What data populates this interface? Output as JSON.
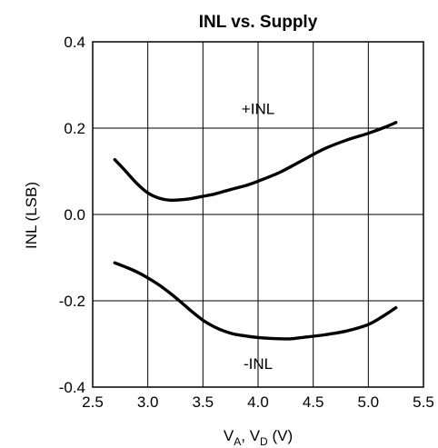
{
  "chart_data": {
    "type": "line",
    "title": "INL vs. Supply",
    "xlabel": {
      "base": "V",
      "sub1": "A",
      "mid": ", V",
      "sub2": "D",
      "unit": " (V)"
    },
    "ylabel": "INL (LSB)",
    "xlim": [
      2.5,
      5.5
    ],
    "ylim": [
      -0.4,
      0.4
    ],
    "grid": true,
    "xticks": [
      2.5,
      3.0,
      3.5,
      4.0,
      4.5,
      5.0,
      5.5
    ],
    "xtick_labels": [
      "2.5",
      "3.0",
      "3.5",
      "4.0",
      "4.5",
      "5.0",
      "5.5"
    ],
    "yticks": [
      0.4,
      0.2,
      0.0,
      -0.2,
      -0.4
    ],
    "ytick_labels": [
      "0.4",
      "0.2",
      "0.0",
      "-0.2",
      "-0.4"
    ],
    "series": [
      {
        "name": "+INL",
        "x": [
          2.7,
          2.8,
          2.9,
          3.0,
          3.1,
          3.2,
          3.3,
          3.4,
          3.5,
          3.6,
          3.7,
          3.8,
          3.9,
          4.0,
          4.2,
          4.4,
          4.6,
          4.8,
          5.0,
          5.15,
          5.25
        ],
        "y": [
          0.127,
          0.1,
          0.072,
          0.05,
          0.038,
          0.033,
          0.034,
          0.037,
          0.042,
          0.047,
          0.054,
          0.061,
          0.068,
          0.077,
          0.098,
          0.125,
          0.152,
          0.172,
          0.188,
          0.202,
          0.213
        ]
      },
      {
        "name": "-INL",
        "x": [
          2.7,
          2.8,
          2.9,
          3.0,
          3.1,
          3.2,
          3.3,
          3.4,
          3.5,
          3.6,
          3.7,
          3.8,
          3.9,
          4.0,
          4.1,
          4.2,
          4.3,
          4.4,
          4.6,
          4.8,
          5.0,
          5.15,
          5.25
        ],
        "y": [
          -0.112,
          -0.122,
          -0.133,
          -0.147,
          -0.163,
          -0.182,
          -0.203,
          -0.225,
          -0.245,
          -0.26,
          -0.271,
          -0.278,
          -0.282,
          -0.285,
          -0.287,
          -0.288,
          -0.288,
          -0.285,
          -0.279,
          -0.27,
          -0.255,
          -0.233,
          -0.216
        ]
      }
    ],
    "annotations": [
      {
        "text": "+INL",
        "x": 4.0,
        "y": 0.245
      },
      {
        "text": "-INL",
        "x": 4.0,
        "y": -0.345
      }
    ]
  }
}
